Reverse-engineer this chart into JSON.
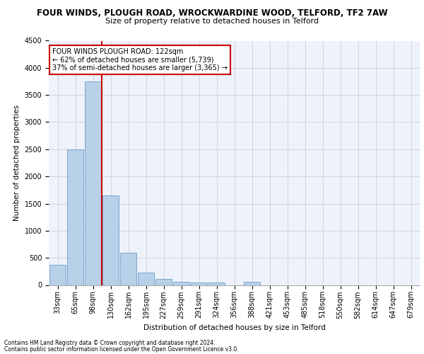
{
  "title_line1": "FOUR WINDS, PLOUGH ROAD, WROCKWARDINE WOOD, TELFORD, TF2 7AW",
  "title_line2": "Size of property relative to detached houses in Telford",
  "xlabel": "Distribution of detached houses by size in Telford",
  "ylabel": "Number of detached properties",
  "footnote1": "Contains HM Land Registry data © Crown copyright and database right 2024.",
  "footnote2": "Contains public sector information licensed under the Open Government Licence v3.0.",
  "bar_labels": [
    "33sqm",
    "65sqm",
    "98sqm",
    "130sqm",
    "162sqm",
    "195sqm",
    "227sqm",
    "259sqm",
    "291sqm",
    "324sqm",
    "356sqm",
    "388sqm",
    "421sqm",
    "453sqm",
    "485sqm",
    "518sqm",
    "550sqm",
    "582sqm",
    "614sqm",
    "647sqm",
    "679sqm"
  ],
  "bar_values": [
    370,
    2500,
    3750,
    1650,
    590,
    230,
    110,
    65,
    40,
    40,
    0,
    60,
    0,
    0,
    0,
    0,
    0,
    0,
    0,
    0,
    0
  ],
  "bar_color": "#b8d0e8",
  "bar_edge_color": "#6a9fc8",
  "highlight_bar_idx": 3,
  "highlight_color": "#cc0000",
  "ylim": [
    0,
    4500
  ],
  "yticks": [
    0,
    500,
    1000,
    1500,
    2000,
    2500,
    3000,
    3500,
    4000,
    4500
  ],
  "annotation_text_line1": "FOUR WINDS PLOUGH ROAD: 122sqm",
  "annotation_text_line2": "← 62% of detached houses are smaller (5,739)",
  "annotation_text_line3": "37% of semi-detached houses are larger (3,365) →",
  "bg_color": "#eef2fb",
  "grid_color": "#c8cfe0",
  "title1_fontsize": 8.5,
  "title2_fontsize": 8.0,
  "axis_label_fontsize": 7.5,
  "tick_fontsize": 7.0,
  "ann_fontsize": 7.0,
  "footnote_fontsize": 5.5
}
